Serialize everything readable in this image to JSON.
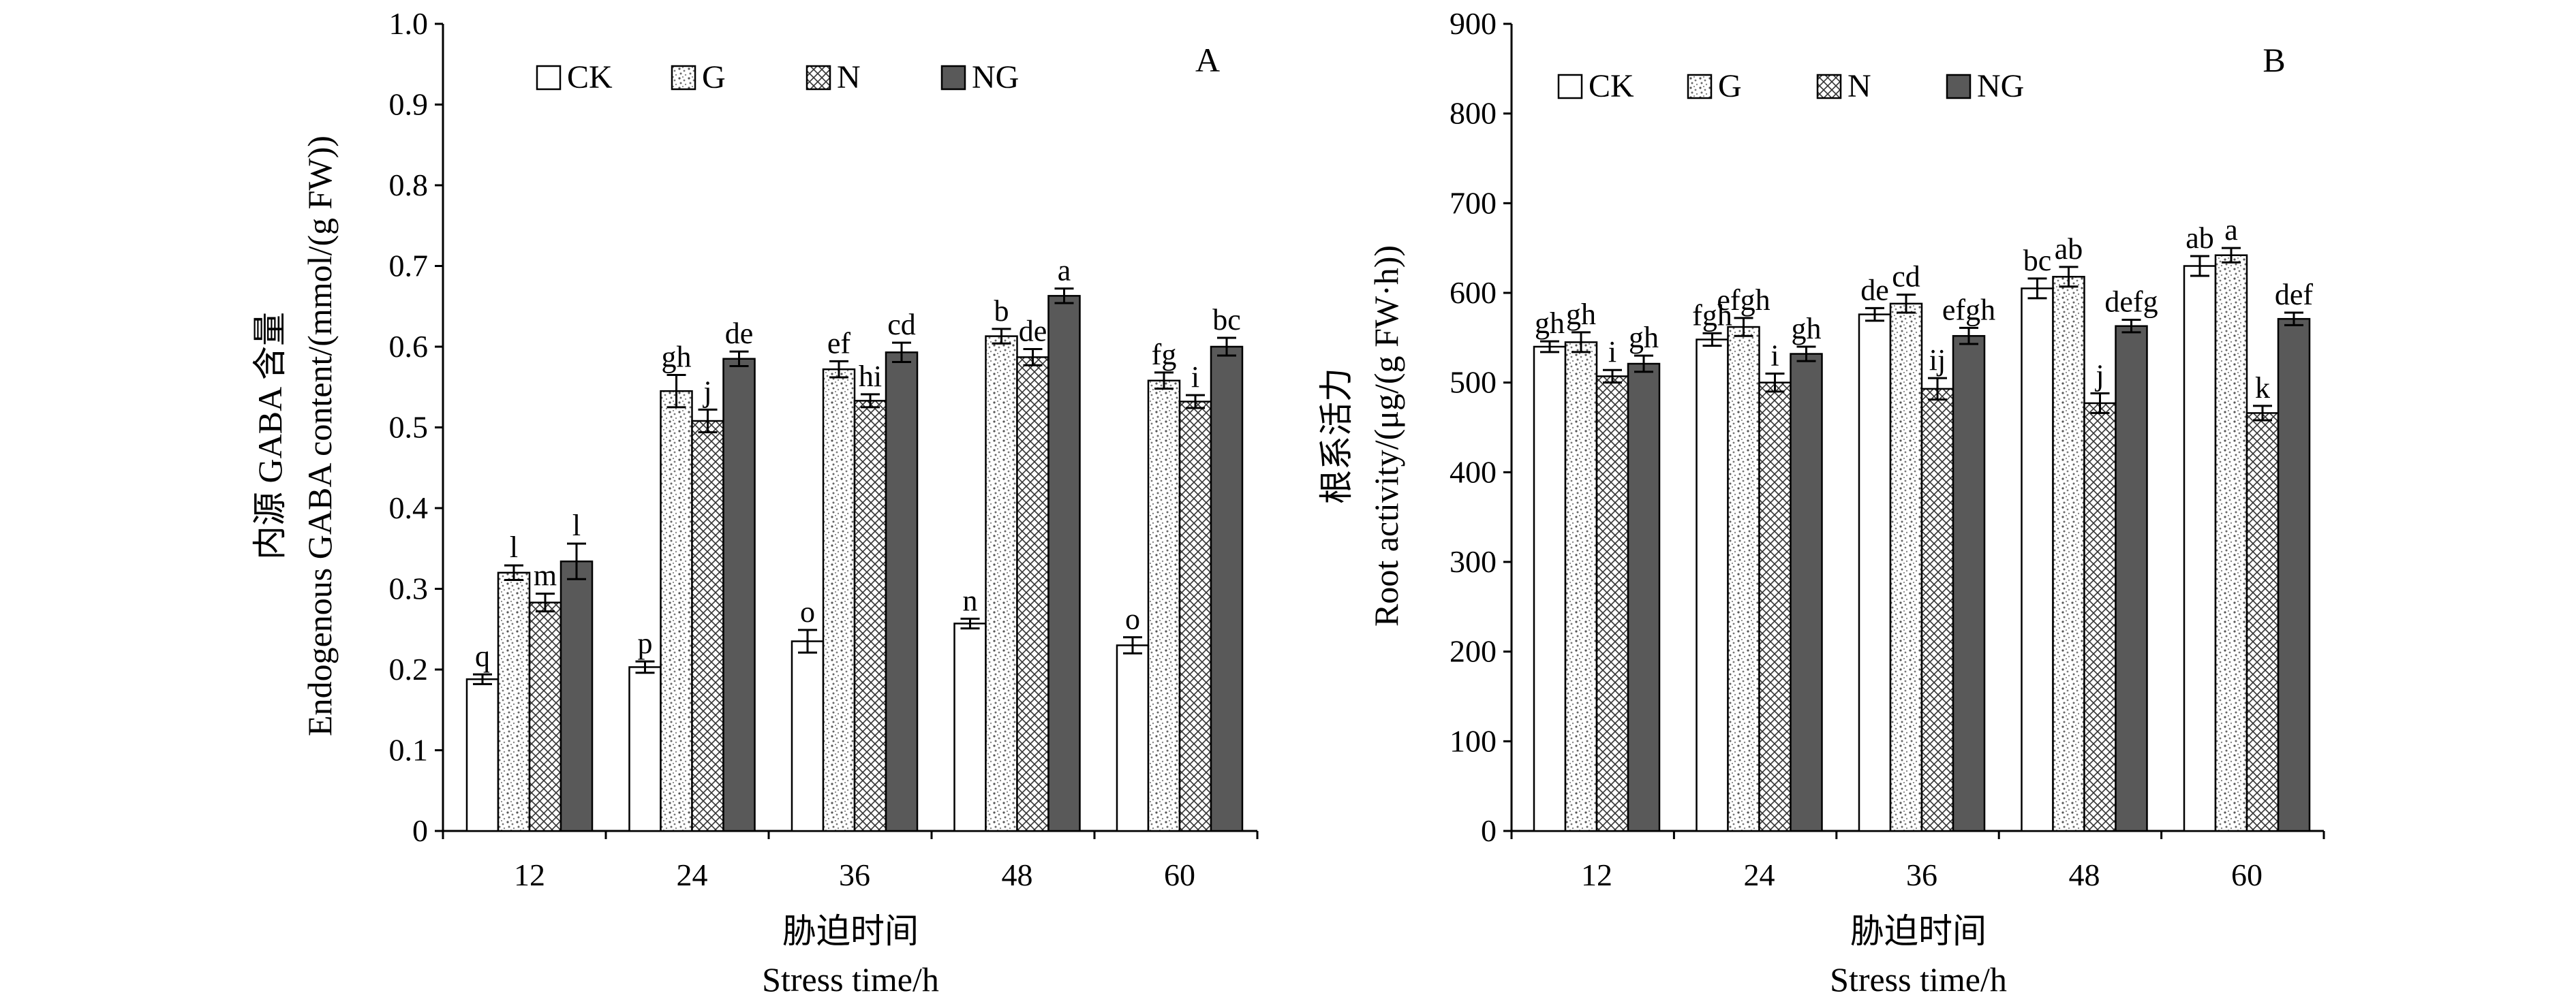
{
  "chart_data": [
    {
      "type": "bar",
      "panel_label": "A",
      "title": "",
      "categories": [
        "12",
        "24",
        "36",
        "48",
        "60"
      ],
      "xlabel_cn": "胁迫时间",
      "xlabel_en": "Stress time/h",
      "ylabel_cn": "内源 GABA 含量",
      "ylabel_en": "Endogenous GABA content/(mmol/(g FW))",
      "ylim": [
        0,
        1.0
      ],
      "yticks": [
        "0",
        "0.1",
        "0.2",
        "0.3",
        "0.4",
        "0.5",
        "0.6",
        "0.7",
        "0.8",
        "0.9",
        "1.0"
      ],
      "ytick_values": [
        0,
        0.1,
        0.2,
        0.3,
        0.4,
        0.5,
        0.6,
        0.7,
        0.8,
        0.9,
        1.0
      ],
      "legend": [
        "CK",
        "G",
        "N",
        "NG"
      ],
      "legend_position": "top-left",
      "series": [
        {
          "name": "CK",
          "values": [
            0.188,
            0.203,
            0.235,
            0.257,
            0.23
          ],
          "errors": [
            0.006,
            0.007,
            0.014,
            0.006,
            0.01
          ],
          "labels": [
            "q",
            "p",
            "o",
            "n",
            "o"
          ]
        },
        {
          "name": "G",
          "values": [
            0.32,
            0.545,
            0.572,
            0.613,
            0.558
          ],
          "errors": [
            0.009,
            0.02,
            0.01,
            0.009,
            0.01
          ],
          "labels": [
            "l",
            "gh",
            "ef",
            "b",
            "fg"
          ]
        },
        {
          "name": "N",
          "values": [
            0.283,
            0.508,
            0.533,
            0.587,
            0.532
          ],
          "errors": [
            0.011,
            0.014,
            0.008,
            0.01,
            0.008
          ],
          "labels": [
            "m",
            "j",
            "hi",
            "de",
            "i"
          ]
        },
        {
          "name": "NG",
          "values": [
            0.334,
            0.585,
            0.593,
            0.663,
            0.6
          ],
          "errors": [
            0.022,
            0.009,
            0.012,
            0.009,
            0.011
          ],
          "labels": [
            "l",
            "de",
            "cd",
            "a",
            "bc"
          ]
        }
      ]
    },
    {
      "type": "bar",
      "panel_label": "B",
      "title": "",
      "categories": [
        "12",
        "24",
        "36",
        "48",
        "60"
      ],
      "xlabel_cn": "胁迫时间",
      "xlabel_en": "Stress time/h",
      "ylabel_cn": "根系活力",
      "ylabel_en": "Root activity/(μg/(g FW·h))",
      "ylim": [
        0,
        900
      ],
      "yticks": [
        "0",
        "100",
        "200",
        "300",
        "400",
        "500",
        "600",
        "700",
        "800",
        "900"
      ],
      "ytick_values": [
        0,
        100,
        200,
        300,
        400,
        500,
        600,
        700,
        800,
        900
      ],
      "legend": [
        "CK",
        "G",
        "N",
        "NG"
      ],
      "legend_position": "top-left",
      "series": [
        {
          "name": "CK",
          "values": [
            540,
            548,
            576,
            605,
            630
          ],
          "errors": [
            6,
            7,
            7,
            11,
            11
          ],
          "labels": [
            "gh",
            "fgh",
            "de",
            "bc",
            "ab"
          ]
        },
        {
          "name": "G",
          "values": [
            545,
            562,
            588,
            618,
            642
          ],
          "errors": [
            11,
            10,
            10,
            11,
            8
          ],
          "labels": [
            "gh",
            "efgh",
            "cd",
            "ab",
            "a"
          ]
        },
        {
          "name": "N",
          "values": [
            507,
            500,
            493,
            477,
            466
          ],
          "errors": [
            7,
            10,
            12,
            11,
            8
          ],
          "labels": [
            "i",
            "i",
            "ij",
            "j",
            "k"
          ]
        },
        {
          "name": "NG",
          "values": [
            521,
            532,
            552,
            563,
            571
          ],
          "errors": [
            9,
            8,
            9,
            7,
            7
          ],
          "labels": [
            "gh",
            "gh",
            "efgh",
            "defg",
            "def"
          ]
        }
      ]
    }
  ]
}
